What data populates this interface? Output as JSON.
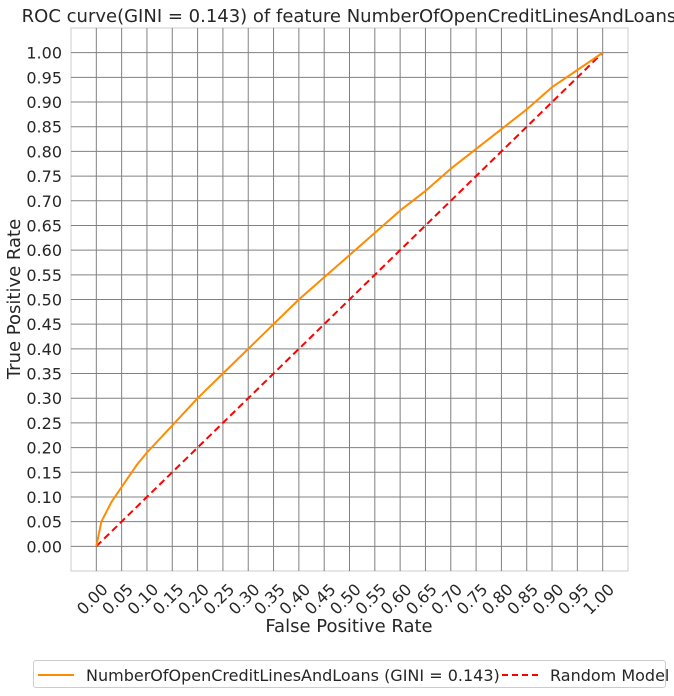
{
  "chart_data": {
    "type": "line",
    "title": "ROC curve(GINI = 0.143) of feature NumberOfOpenCreditLinesAndLoans",
    "xlabel": "False Positive Rate",
    "ylabel": "True Positive Rate",
    "xlim": [
      -0.05,
      1.05
    ],
    "ylim": [
      -0.05,
      1.05
    ],
    "xticks": [
      "0.00",
      "0.05",
      "0.10",
      "0.15",
      "0.20",
      "0.25",
      "0.30",
      "0.35",
      "0.40",
      "0.45",
      "0.50",
      "0.55",
      "0.60",
      "0.65",
      "0.70",
      "0.75",
      "0.80",
      "0.85",
      "0.90",
      "0.95",
      "1.00"
    ],
    "yticks": [
      "0.00",
      "0.05",
      "0.10",
      "0.15",
      "0.20",
      "0.25",
      "0.30",
      "0.35",
      "0.40",
      "0.45",
      "0.50",
      "0.55",
      "0.60",
      "0.65",
      "0.70",
      "0.75",
      "0.80",
      "0.85",
      "0.90",
      "0.95",
      "1.00"
    ],
    "grid": true,
    "legend_position": "bottom",
    "series": [
      {
        "name": "NumberOfOpenCreditLinesAndLoans (GINI = 0.143)",
        "color": "#ff8c00",
        "style": "solid",
        "x": [
          0.0,
          0.01,
          0.03,
          0.05,
          0.08,
          0.1,
          0.15,
          0.2,
          0.25,
          0.3,
          0.35,
          0.4,
          0.45,
          0.5,
          0.55,
          0.6,
          0.65,
          0.7,
          0.75,
          0.8,
          0.85,
          0.9,
          0.95,
          1.0
        ],
        "y": [
          0.0,
          0.05,
          0.09,
          0.12,
          0.165,
          0.19,
          0.245,
          0.3,
          0.35,
          0.4,
          0.45,
          0.5,
          0.545,
          0.59,
          0.635,
          0.68,
          0.72,
          0.765,
          0.805,
          0.845,
          0.885,
          0.93,
          0.965,
          1.0
        ]
      },
      {
        "name": "Random Model",
        "color": "#ff0000",
        "style": "dashed",
        "x": [
          0.0,
          1.0
        ],
        "y": [
          0.0,
          1.0
        ]
      }
    ]
  }
}
